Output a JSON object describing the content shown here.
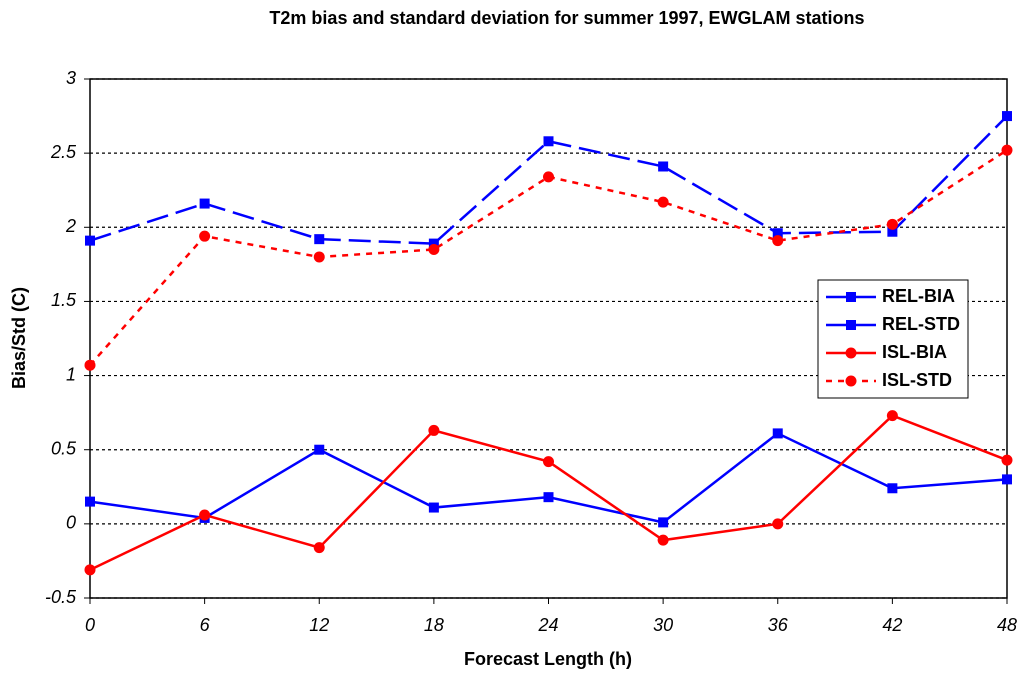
{
  "chart_data": {
    "type": "line",
    "title": "T2m bias and standard deviation for summer 1997, EWGLAM stations",
    "x_label": "Forecast Length (h)",
    "y_label": "Bias/Std (C)",
    "x": [
      0,
      6,
      12,
      18,
      24,
      30,
      36,
      42,
      48
    ],
    "xlim": [
      0,
      48
    ],
    "xticks": [
      0,
      6,
      12,
      18,
      24,
      30,
      36,
      42,
      48
    ],
    "ylim": [
      -0.5,
      3
    ],
    "yticks": [
      -0.5,
      0,
      0.5,
      1,
      1.5,
      2,
      2.5,
      3
    ],
    "grid": true,
    "legend": "right",
    "series": [
      {
        "name": "REL-BIA",
        "color": "#0000ff",
        "line_style": "solid",
        "marker": "square",
        "values": [
          0.15,
          0.04,
          0.5,
          0.11,
          0.18,
          0.01,
          0.61,
          0.24,
          0.3
        ]
      },
      {
        "name": "REL-STD",
        "color": "#0000ff",
        "line_style": "dashed",
        "marker": "square",
        "values": [
          1.91,
          2.16,
          1.92,
          1.89,
          2.58,
          2.41,
          1.96,
          1.97,
          2.75
        ]
      },
      {
        "name": "ISL-BIA",
        "color": "#ff0000",
        "line_style": "solid",
        "marker": "circle",
        "values": [
          -0.31,
          0.06,
          -0.16,
          0.63,
          0.42,
          -0.11,
          0.0,
          0.73,
          0.43
        ]
      },
      {
        "name": "ISL-STD",
        "color": "#ff0000",
        "line_style": "dotted",
        "marker": "circle",
        "values": [
          1.07,
          1.94,
          1.8,
          1.85,
          2.34,
          2.17,
          1.91,
          2.02,
          2.52
        ]
      }
    ]
  }
}
